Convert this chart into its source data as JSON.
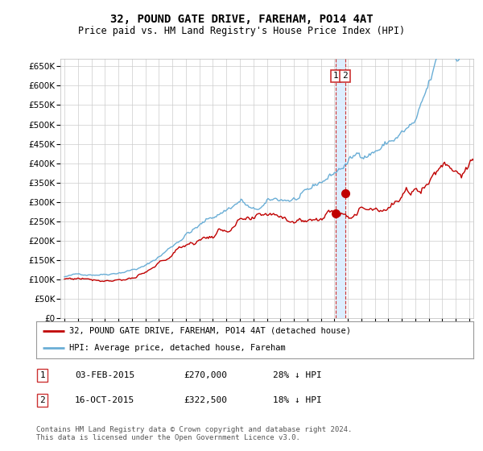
{
  "title": "32, POUND GATE DRIVE, FAREHAM, PO14 4AT",
  "subtitle": "Price paid vs. HM Land Registry's House Price Index (HPI)",
  "ylim": [
    0,
    670000
  ],
  "yticks": [
    0,
    50000,
    100000,
    150000,
    200000,
    250000,
    300000,
    350000,
    400000,
    450000,
    500000,
    550000,
    600000,
    650000
  ],
  "hpi_color": "#6aaed6",
  "price_color": "#c00000",
  "marker1_x": 2015.085,
  "marker1_y": 270000,
  "marker2_x": 2015.79,
  "marker2_y": 322500,
  "vband_color": "#ddeeff",
  "vline_color": "#cc3333",
  "legend_label1": "32, POUND GATE DRIVE, FAREHAM, PO14 4AT (detached house)",
  "legend_label2": "HPI: Average price, detached house, Fareham",
  "table_row1": [
    "1",
    "03-FEB-2015",
    "£270,000",
    "28% ↓ HPI"
  ],
  "table_row2": [
    "2",
    "16-OCT-2015",
    "£322,500",
    "18% ↓ HPI"
  ],
  "footnote": "Contains HM Land Registry data © Crown copyright and database right 2024.\nThis data is licensed under the Open Government Licence v3.0.",
  "background_color": "#ffffff",
  "grid_color": "#cccccc",
  "xlim_left": 1994.7,
  "xlim_right": 2025.3
}
